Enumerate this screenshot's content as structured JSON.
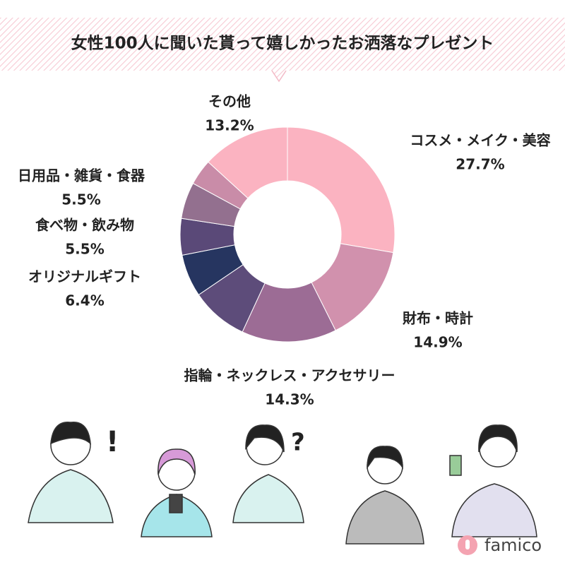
{
  "chart_data": {
    "type": "donut",
    "title": "女性100人に聞いた貰って嬉しかったお洒落なプレゼント",
    "categories": [
      "コスメ・メイク・美容",
      "財布・時計",
      "指輪・ネックレス・アクセサリー",
      null,
      "オリジナルギフト",
      "食べ物・飲み物",
      "日用品・雑貨・食器",
      null,
      "その他"
    ],
    "values": [
      27.7,
      14.9,
      14.3,
      8.6,
      6.4,
      5.5,
      5.5,
      3.9,
      13.2
    ],
    "value_labels": [
      "27.7%",
      "14.9%",
      "14.3%",
      null,
      "6.4%",
      "5.5%",
      "5.5%",
      null,
      "13.2%"
    ],
    "colors": [
      "#fbb3c1",
      "#d191ad",
      "#9c6c95",
      "#5d4c7a",
      "#263560",
      "#5a4978",
      "#93708f",
      "#c98ca8",
      "#fbb3c1"
    ]
  },
  "decorations": [
    "!",
    "?"
  ],
  "brand": "famico"
}
